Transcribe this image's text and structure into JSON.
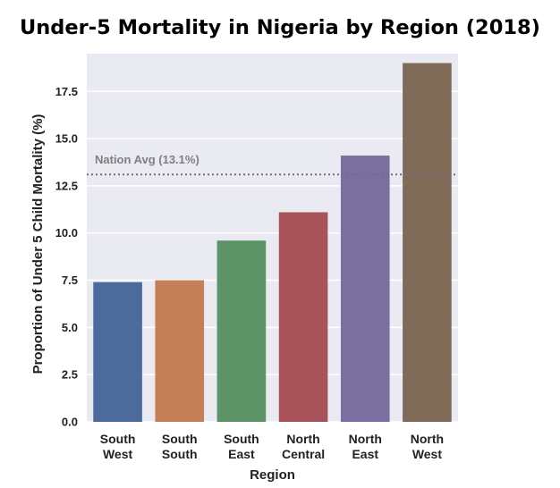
{
  "chart_data": {
    "type": "bar",
    "title": "Under-5 Mortality in Nigeria by Region (2018)",
    "xlabel": "Region",
    "ylabel": "Proportion of Under 5 Child Mortality (%)",
    "categories": [
      "South West",
      "South South",
      "South East",
      "North Central",
      "North East",
      "North West"
    ],
    "category_lines": [
      [
        "South",
        "West"
      ],
      [
        "South",
        "South"
      ],
      [
        "South",
        "East"
      ],
      [
        "North",
        "Central"
      ],
      [
        "North",
        "East"
      ],
      [
        "North",
        "West"
      ]
    ],
    "values": [
      7.4,
      7.5,
      9.6,
      11.1,
      14.1,
      19.0
    ],
    "colors": [
      "#4c6a9b",
      "#c47f58",
      "#5c9468",
      "#a8525a",
      "#7b6f9f",
      "#806b59"
    ],
    "ylim": [
      0,
      19.5
    ],
    "yticks": [
      "0.0",
      "2.5",
      "5.0",
      "7.5",
      "10.0",
      "12.5",
      "15.0",
      "17.5"
    ],
    "reference_line": {
      "label": "Nation Avg (13.1%)",
      "value": 13.1,
      "style": "dotted",
      "color": "#6e6e80"
    },
    "background": "#eaeaf2",
    "grid": true
  }
}
